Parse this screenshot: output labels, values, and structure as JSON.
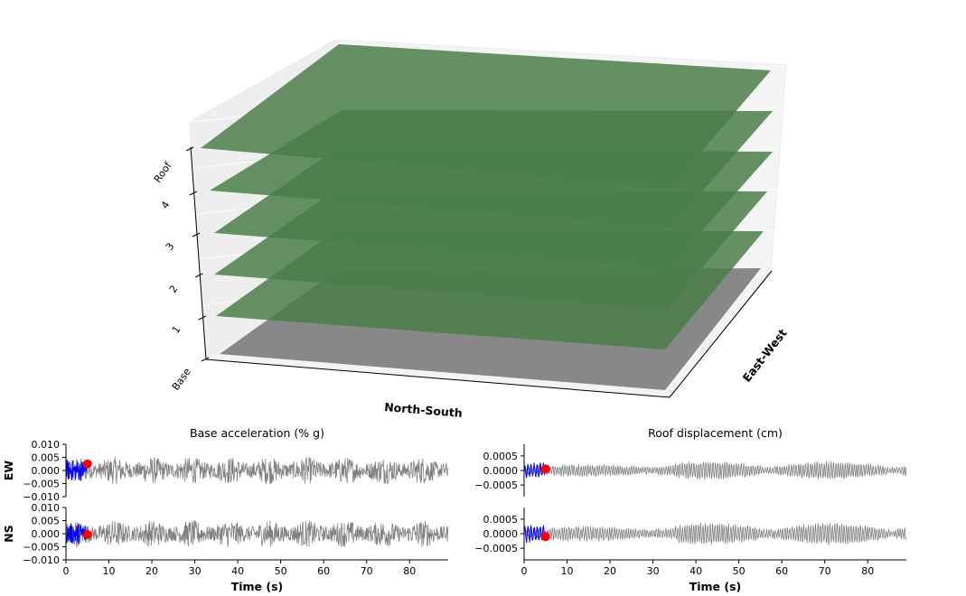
{
  "colors": {
    "floor": "#4a7e4a",
    "base_plate": "#888888",
    "record": "#808080",
    "highlight": "#0000ff",
    "marker": "#ff0000"
  },
  "building_view": {
    "z_tick_labels": [
      "Base",
      "1",
      "2",
      "3",
      "4",
      "Roof"
    ],
    "x_axis_label": "North-South",
    "y_axis_label": "East-West"
  },
  "chart_data": [
    {
      "type": "line",
      "title": "Base acceleration (% g)",
      "row_labels": [
        "EW",
        "NS"
      ],
      "xlabel": "Time (s)",
      "xlim": [
        0,
        89
      ],
      "xticks": [
        0,
        10,
        20,
        30,
        40,
        50,
        60,
        70,
        80
      ],
      "ylim": [
        -0.01,
        0.01
      ],
      "yticks": [
        -0.01,
        -0.005,
        0.0,
        0.005,
        0.01
      ],
      "ytick_labels": [
        "−0.010",
        "−0.005",
        "0.000",
        "0.005",
        "0.010"
      ],
      "series": [
        {
          "row": "EW",
          "envelope_amplitude": 0.005,
          "noise": "broadband"
        },
        {
          "row": "NS",
          "envelope_amplitude": 0.005,
          "noise": "broadband"
        }
      ],
      "current_time": 5.0,
      "current_values": [
        0.0025,
        -0.0003
      ]
    },
    {
      "type": "line",
      "title": "Roof displacement (cm)",
      "row_labels": [
        "EW",
        "NS"
      ],
      "xlabel": "Time (s)",
      "xlim": [
        0,
        89
      ],
      "xticks": [
        0,
        10,
        20,
        30,
        40,
        50,
        60,
        70,
        80
      ],
      "ylim": [
        -0.0009,
        0.0009
      ],
      "yticks": [
        -0.0005,
        0.0,
        0.0005
      ],
      "ytick_labels": [
        "−0.0005",
        "0.0000",
        "0.0005"
      ],
      "series": [
        {
          "row": "EW",
          "envelope_amplitude": 0.00025,
          "noise": "oscillatory"
        },
        {
          "row": "NS",
          "envelope_amplitude": 0.0003,
          "noise": "oscillatory"
        }
      ],
      "current_time": 5.0,
      "current_values": [
        5e-05,
        -0.0001
      ]
    }
  ]
}
